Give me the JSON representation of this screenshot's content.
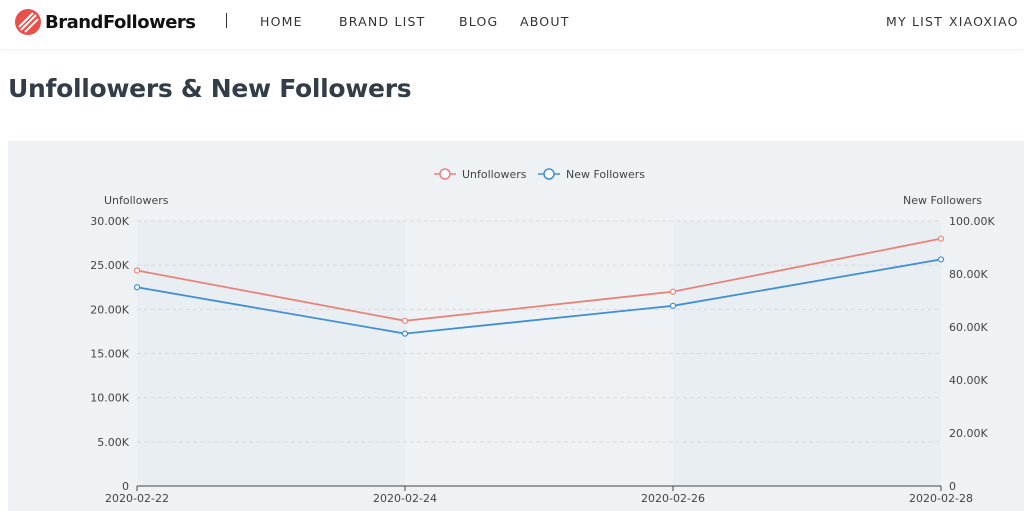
{
  "nav": {
    "brand": "BrandFollowers",
    "links": [
      "HOME",
      "BRAND LIST",
      "BLOG",
      "ABOUT"
    ],
    "right_links": [
      "MY LIST",
      "XIAOXIAO"
    ]
  },
  "page": {
    "title": "Unfollowers & New Followers"
  },
  "colors": {
    "unfollowers": "#e8837b",
    "new_followers": "#3f8fd6",
    "logo": "#e9504a"
  },
  "chart_data": {
    "type": "line",
    "x": [
      "2020-02-22",
      "2020-02-24",
      "2020-02-26",
      "2020-02-28"
    ],
    "series": [
      {
        "name": "Unfollowers",
        "axis": "left",
        "values": [
          24400,
          18700,
          22000,
          28000
        ]
      },
      {
        "name": "New Followers",
        "axis": "right",
        "values": [
          75000,
          57500,
          68000,
          85500
        ]
      }
    ],
    "ylabel_left": "Unfollowers",
    "ylabel_right": "New Followers",
    "ylim_left": [
      0,
      30000
    ],
    "ylim_right": [
      0,
      100000
    ],
    "ticks_left": [
      "0",
      "5.00K",
      "10.00K",
      "15.00K",
      "20.00K",
      "25.00K",
      "30.00K"
    ],
    "ticks_right": [
      "0",
      "20.00K",
      "40.00K",
      "60.00K",
      "80.00K",
      "100.00K"
    ],
    "grid": true,
    "legend": "top-center"
  }
}
